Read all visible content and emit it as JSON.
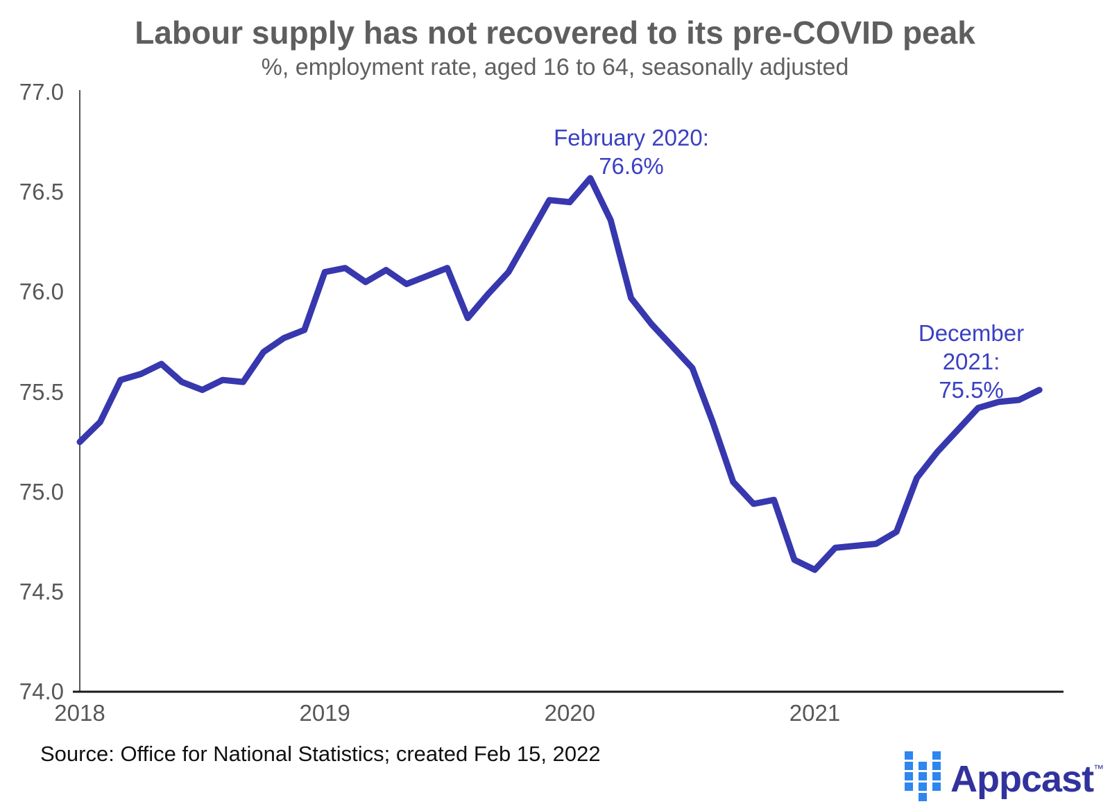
{
  "header": {
    "title": "Labour supply has not recovered to its pre-COVID peak",
    "subtitle": "%, employment rate, aged 16 to 64, seasonally adjusted"
  },
  "chart_data": {
    "type": "line",
    "title": "Labour supply has not recovered to its pre-COVID peak",
    "subtitle": "%, employment rate, aged 16 to 64, seasonally adjusted",
    "x_frequency": "monthly",
    "x_start": "2018-01",
    "x_end": "2021-12",
    "x_tick_labels": [
      "2018",
      "2019",
      "2020",
      "2021"
    ],
    "y_ticks": [
      74.0,
      74.5,
      75.0,
      75.5,
      76.0,
      76.5,
      77.0
    ],
    "y_tick_labels": [
      "74.0",
      "74.5",
      "75.0",
      "75.5",
      "76.0",
      "76.5",
      "77.0"
    ],
    "ylim": [
      74.0,
      77.0
    ],
    "grid": false,
    "legend": "none",
    "series": [
      {
        "name": "Employment rate, aged 16 to 64, seasonally adjusted (%)",
        "color": "#3737ae",
        "values": [
          75.25,
          75.35,
          75.56,
          75.59,
          75.64,
          75.55,
          75.51,
          75.56,
          75.55,
          75.7,
          75.77,
          75.81,
          76.1,
          76.12,
          76.05,
          76.11,
          76.04,
          76.08,
          76.12,
          75.87,
          75.99,
          76.1,
          76.28,
          76.46,
          76.45,
          76.57,
          76.36,
          75.97,
          75.84,
          75.73,
          75.62,
          75.35,
          75.05,
          74.94,
          74.96,
          74.66,
          74.61,
          74.72,
          74.73,
          74.74,
          74.8,
          75.07,
          75.2,
          75.31,
          75.42,
          75.45,
          75.46,
          75.51
        ]
      }
    ],
    "annotations": [
      {
        "line1": "February 2020:",
        "line2": "76.6%",
        "month": "2020-02",
        "value": 76.6
      },
      {
        "line1": "December 2021:",
        "line2": "75.5%",
        "month": "2021-12",
        "value": 75.5
      }
    ]
  },
  "footer": {
    "source": "Source: Office for National Statistics; created Feb 15, 2022",
    "logo_text": "Appcast",
    "logo_tm": "™",
    "logo_pattern": [
      [
        1,
        0,
        1
      ],
      [
        1,
        1,
        1
      ],
      [
        1,
        1,
        1
      ],
      [
        1,
        1,
        1
      ],
      [
        0,
        1,
        0
      ]
    ]
  },
  "colors": {
    "line": "#3737ae",
    "annotation": "#3a40c2",
    "title_gray": "#5e5e5e",
    "axis_dark": "#1a1a1a",
    "axis_gray": "#555555",
    "tick_gray": "#57575a",
    "logo_blue": "#2e86ee",
    "logo_navy": "#32329e"
  }
}
